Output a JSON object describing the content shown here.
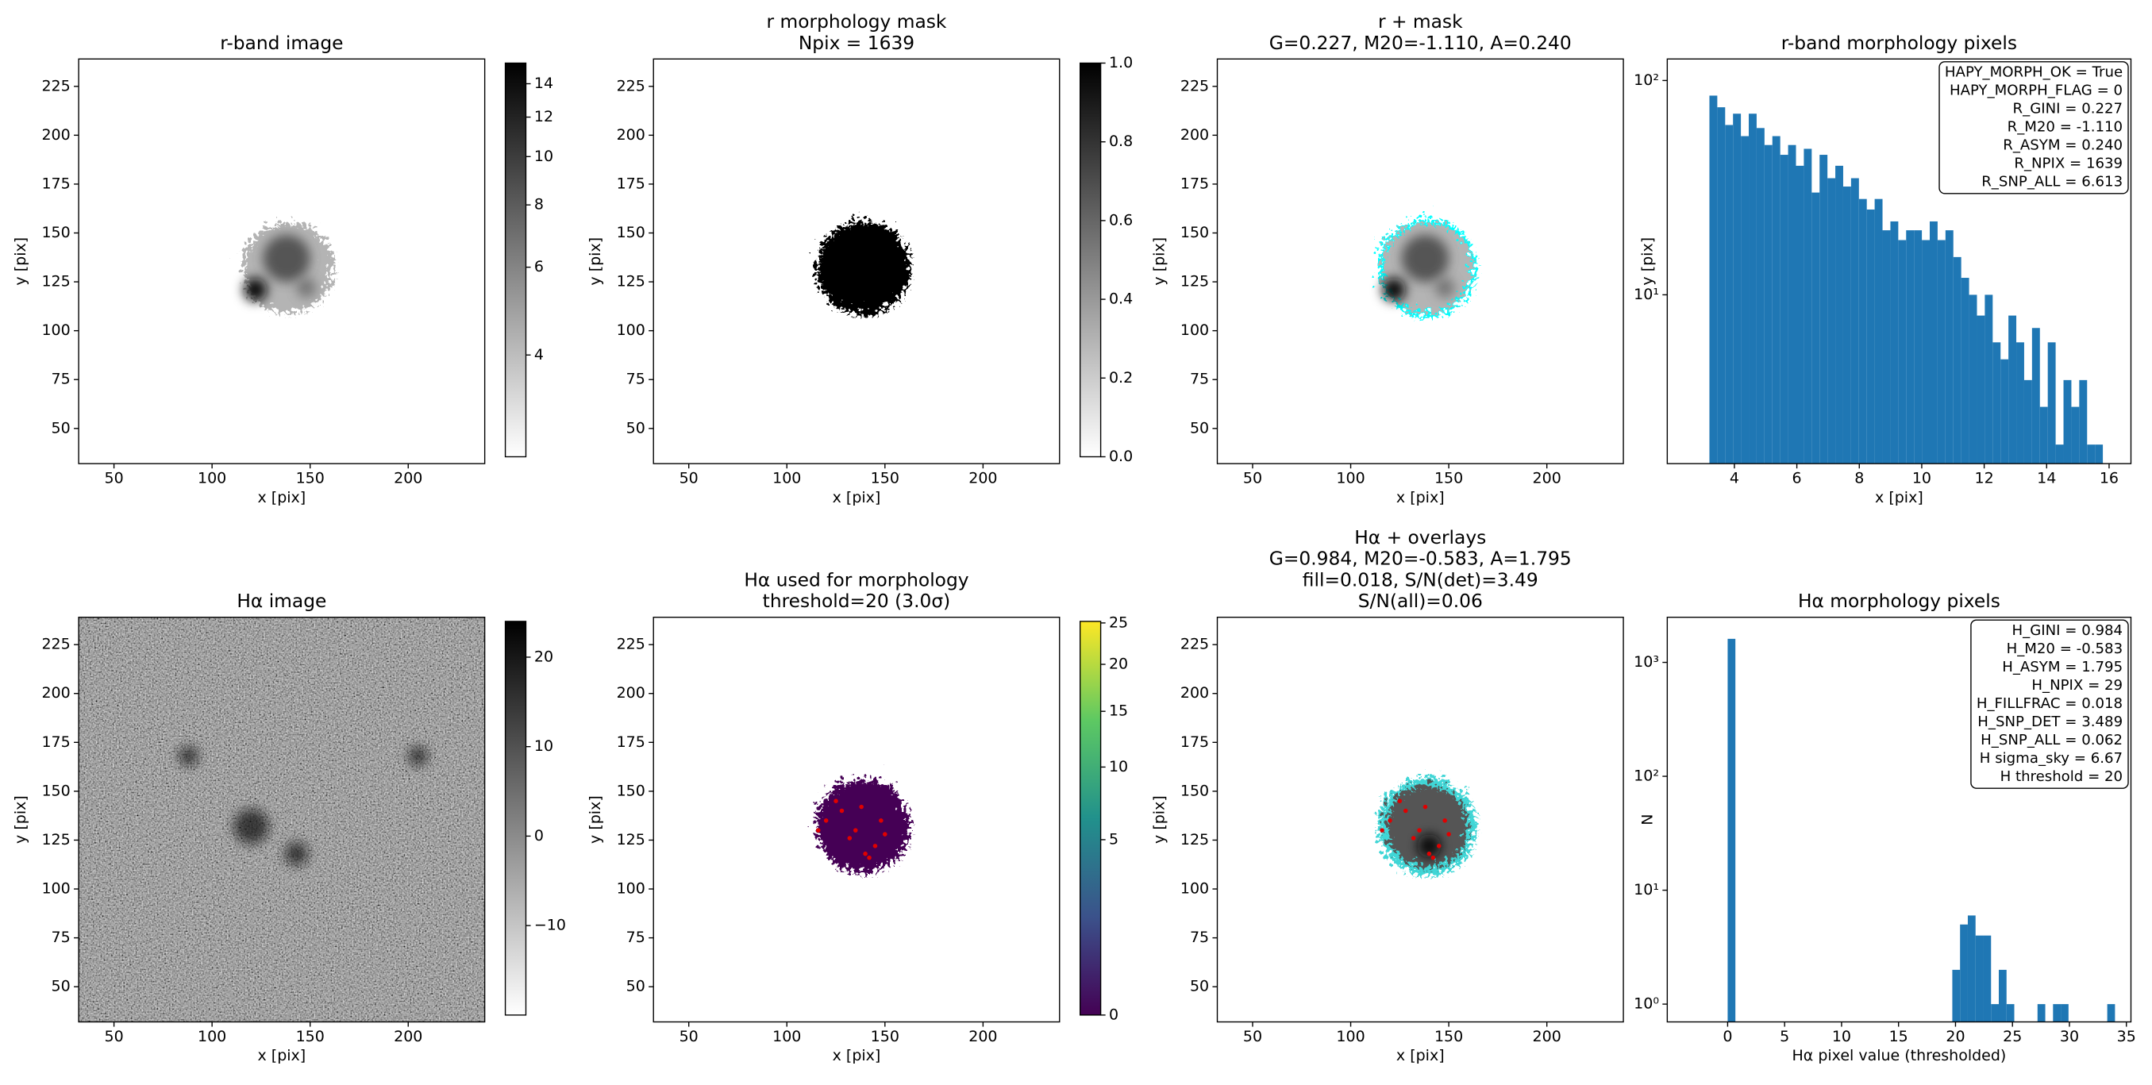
{
  "chart_data": [
    {
      "type": "image",
      "title": [
        "r-band image"
      ],
      "xlabel": "x [pix]",
      "ylabel": "y [pix]",
      "xlim": [
        32,
        239
      ],
      "ylim": [
        32,
        239
      ],
      "xticks": [
        50,
        100,
        150,
        200
      ],
      "yticks": [
        50,
        75,
        100,
        125,
        150,
        175,
        200,
        225
      ],
      "cmap": "gray_r",
      "colorbar": {
        "clim": [
          2.5,
          15.4
        ],
        "scale": "log",
        "ticks": [
          4,
          6,
          8,
          10,
          12,
          14
        ]
      }
    },
    {
      "type": "image",
      "title": [
        "r morphology mask",
        "Npix = 1639"
      ],
      "xlabel": "x [pix]",
      "ylabel": "y [pix]",
      "xlim": [
        32,
        239
      ],
      "ylim": [
        32,
        239
      ],
      "xticks": [
        50,
        100,
        150,
        200
      ],
      "yticks": [
        50,
        75,
        100,
        125,
        150,
        175,
        200,
        225
      ],
      "cmap": "gray_r",
      "colorbar": {
        "clim": [
          0,
          1
        ],
        "scale": "linear",
        "ticks": [
          {
            "value": 0,
            "label": "0.0"
          },
          0.2,
          0.4,
          0.6,
          0.8,
          {
            "value": 1,
            "label": "1.0"
          }
        ]
      }
    },
    {
      "type": "image",
      "title": [
        "r + mask",
        "G=0.227, M20=-1.110, A=0.240"
      ],
      "xlabel": "x [pix]",
      "ylabel": "y [pix]",
      "xlim": [
        32,
        239
      ],
      "ylim": [
        32,
        239
      ],
      "xticks": [
        50,
        100,
        150,
        200
      ],
      "yticks": [
        50,
        75,
        100,
        125,
        150,
        175,
        200,
        225
      ],
      "cmap": "gray_r"
    },
    {
      "type": "histogram",
      "title": [
        "r-band morphology pixels"
      ],
      "xlabel": "x [pix]",
      "ylabel": "y [pix]",
      "color": "#1f77b4",
      "ylog": true,
      "bins": [
        3.2,
        3.452,
        3.704,
        3.956,
        4.208,
        4.46,
        4.712,
        4.964,
        5.216,
        5.468,
        5.72,
        5.972,
        6.224,
        6.476,
        6.728,
        6.98,
        7.232,
        7.484,
        7.736,
        7.988,
        8.24,
        8.492,
        8.744,
        8.996,
        9.248,
        9.5,
        9.752,
        10.004,
        10.256,
        10.508,
        10.76,
        11.012,
        11.264,
        11.516,
        11.768,
        12.02,
        12.272,
        12.524,
        12.776,
        13.028,
        13.28,
        13.532,
        13.784,
        14.036,
        14.288,
        14.54,
        14.792,
        15.044,
        15.296,
        15.548,
        15.8
      ],
      "counts": [
        85,
        75,
        62,
        70,
        55,
        70,
        60,
        50,
        55,
        45,
        50,
        40,
        48,
        30,
        45,
        35,
        40,
        32,
        35,
        28,
        25,
        28,
        20,
        22,
        18,
        20,
        20,
        18,
        22,
        18,
        20,
        15,
        12,
        10,
        8,
        10,
        6,
        5,
        8,
        6,
        4,
        7,
        3,
        6,
        2,
        4,
        3,
        4,
        2,
        2
      ],
      "xlim": [
        1.85,
        16.7
      ],
      "ylim": [
        1.63,
        126
      ],
      "xticks": [
        4,
        6,
        8,
        10,
        12,
        14,
        16
      ],
      "yticks": [
        {
          "value": 10,
          "label": "10¹"
        },
        {
          "value": 100,
          "label": "10²"
        }
      ],
      "annotation": [
        "HAPY_MORPH_OK = True",
        "HAPY_MORPH_FLAG = 0",
        "R_GINI = 0.227",
        "R_M20 = -1.110",
        "R_ASYM = 0.240",
        "R_NPIX = 1639",
        "R_SNP_ALL = 6.613"
      ]
    },
    {
      "type": "image",
      "title": [
        "Hα image"
      ],
      "xlabel": "x [pix]",
      "ylabel": "y [pix]",
      "xlim": [
        32,
        239
      ],
      "ylim": [
        32,
        239
      ],
      "xticks": [
        50,
        100,
        150,
        200
      ],
      "yticks": [
        50,
        75,
        100,
        125,
        150,
        175,
        200,
        225
      ],
      "cmap": "gray_r",
      "colorbar": {
        "clim": [
          -20,
          24
        ],
        "scale": "linear",
        "ticks": [
          {
            "value": -10,
            "label": "−10"
          },
          0,
          10,
          20
        ]
      }
    },
    {
      "type": "image",
      "title": [
        "Hα used for morphology",
        "threshold=20 (3.0σ)"
      ],
      "xlabel": "x [pix]",
      "ylabel": "y [pix]",
      "xlim": [
        32,
        239
      ],
      "ylim": [
        32,
        239
      ],
      "xticks": [
        50,
        100,
        150,
        200
      ],
      "yticks": [
        50,
        75,
        100,
        125,
        150,
        175,
        200,
        225
      ],
      "cmap": "viridis",
      "colorbar": {
        "clim": [
          0,
          25.2
        ],
        "scale": "sqrt",
        "ticks": [
          0,
          5,
          10,
          15,
          20,
          25
        ]
      }
    },
    {
      "type": "image",
      "title": [
        "Hα + overlays",
        "G=0.984, M20=-0.583, A=1.795",
        "fill=0.018, S/N(det)=3.49",
        "S/N(all)=0.06"
      ],
      "xlabel": "x [pix]",
      "ylabel": "y [pix]",
      "xlim": [
        32,
        239
      ],
      "ylim": [
        32,
        239
      ],
      "xticks": [
        50,
        100,
        150,
        200
      ],
      "yticks": [
        50,
        75,
        100,
        125,
        150,
        175,
        200,
        225
      ],
      "cmap": "gray_r"
    },
    {
      "type": "histogram",
      "title": [
        "Hα morphology pixels"
      ],
      "xlabel": "Hα pixel value (thresholded)",
      "ylabel": "N",
      "color": "#1f77b4",
      "ylog": true,
      "bins": [
        0,
        0.68,
        1.36,
        2.04,
        2.72,
        3.4,
        4.08,
        4.76,
        5.44,
        6.12,
        6.8,
        7.48,
        8.16,
        8.84,
        9.52,
        10.2,
        10.88,
        11.56,
        12.24,
        12.92,
        13.6,
        14.28,
        14.96,
        15.64,
        16.32,
        17,
        17.68,
        18.36,
        19.04,
        19.72,
        20.4,
        21.08,
        21.76,
        22.44,
        23.12,
        23.8,
        24.48,
        25.16,
        25.84,
        26.52,
        27.2,
        27.88,
        28.56,
        29.24,
        29.92,
        30.6,
        31.28,
        31.96,
        32.64,
        33.32,
        34
      ],
      "counts": [
        1610,
        0,
        0,
        0,
        0,
        0,
        0,
        0,
        0,
        0,
        0,
        0,
        0,
        0,
        0,
        0,
        0,
        0,
        0,
        0,
        0,
        0,
        0,
        0,
        0,
        0,
        0,
        0,
        0,
        2,
        5,
        6,
        4,
        4,
        1,
        2,
        1,
        0,
        0,
        0,
        1,
        0,
        1,
        1,
        0,
        0,
        0,
        0,
        0,
        1
      ],
      "xlim": [
        -5.3,
        35.4
      ],
      "ylim": [
        0.698,
        2490
      ],
      "xticks": [
        0,
        5,
        10,
        15,
        20,
        25,
        30,
        35
      ],
      "yticks": [
        {
          "value": 1,
          "label": "10⁰"
        },
        {
          "value": 10,
          "label": "10¹"
        },
        {
          "value": 100,
          "label": "10²"
        },
        {
          "value": 1000,
          "label": "10³"
        }
      ],
      "annotation": [
        "H_GINI = 0.984",
        "H_M20 = -0.583",
        "H_ASYM = 1.795",
        "H_NPIX = 29",
        "H_FILLFRAC = 0.018",
        "H_SNP_DET = 3.489",
        "H_SNP_ALL = 0.062",
        "H sigma_sky = 6.67",
        "H threshold = 20"
      ]
    }
  ]
}
